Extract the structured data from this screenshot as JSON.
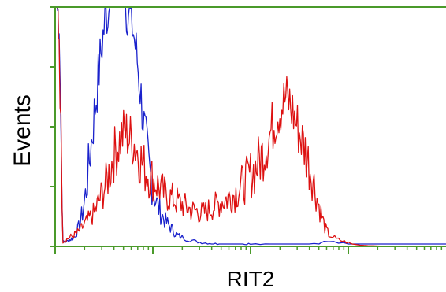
{
  "chart_data": {
    "type": "line",
    "title": "",
    "xlabel": "RIT2",
    "ylabel": "Events",
    "x_scale": "log",
    "xlim": [
      0,
      100
    ],
    "ylim": [
      0,
      100
    ],
    "grid": false,
    "legend": "none",
    "frame_color": "#4a9a2a",
    "series": [
      {
        "color": "#1a22cc",
        "x": [
          0.5,
          1,
          2,
          3,
          4,
          5,
          6,
          7,
          8,
          9,
          10,
          11,
          12,
          13,
          14,
          15,
          16,
          17,
          18,
          19,
          20,
          21,
          22,
          23,
          24,
          25,
          26,
          27,
          28,
          29,
          30,
          31,
          32,
          34,
          36,
          38,
          40,
          42,
          44,
          46,
          48,
          50,
          55,
          60,
          65,
          70,
          75,
          80,
          85,
          90,
          95,
          100
        ],
        "values": [
          100,
          95,
          2,
          2,
          3,
          4,
          8,
          14,
          24,
          40,
          55,
          70,
          85,
          97,
          100,
          100,
          100,
          100,
          100,
          98,
          90,
          78,
          62,
          46,
          33,
          24,
          18,
          14,
          11,
          9,
          7,
          5,
          4,
          3,
          2,
          1.5,
          1.2,
          1,
          1,
          1,
          1,
          1.2,
          1,
          1,
          1,
          2,
          1,
          1,
          1,
          1,
          1,
          1
        ]
      },
      {
        "color": "#dd1111",
        "x": [
          0.5,
          1,
          2,
          3,
          4,
          5,
          6,
          7,
          8,
          9,
          10,
          11,
          12,
          13,
          14,
          15,
          16,
          17,
          18,
          19,
          20,
          21,
          22,
          23,
          24,
          25,
          26,
          27,
          28,
          29,
          30,
          31,
          32,
          33,
          34,
          35,
          36,
          37,
          38,
          39,
          40,
          41,
          42,
          43,
          44,
          45,
          46,
          47,
          48,
          49,
          50,
          51,
          52,
          53,
          54,
          55,
          56,
          57,
          58,
          59,
          60,
          61,
          62,
          63,
          64,
          65,
          66,
          67,
          68,
          69,
          70,
          72,
          74,
          76,
          78,
          80,
          85,
          90,
          95,
          100
        ],
        "values": [
          100,
          90,
          2,
          3,
          4,
          5,
          6,
          8,
          10,
          12,
          14,
          18,
          22,
          26,
          32,
          38,
          42,
          46,
          48,
          45,
          44,
          40,
          36,
          32,
          30,
          28,
          26,
          24,
          22,
          21,
          20,
          19,
          18,
          17,
          16,
          15,
          15,
          14,
          14,
          15,
          16,
          17,
          18,
          19,
          20,
          21,
          22,
          24,
          26,
          28,
          30,
          32,
          35,
          38,
          42,
          47,
          52,
          56,
          59,
          62,
          60,
          55,
          50,
          45,
          40,
          34,
          28,
          20,
          14,
          8,
          5,
          3,
          2,
          1,
          0.5,
          0.3,
          0,
          0,
          0,
          0
        ]
      }
    ]
  }
}
